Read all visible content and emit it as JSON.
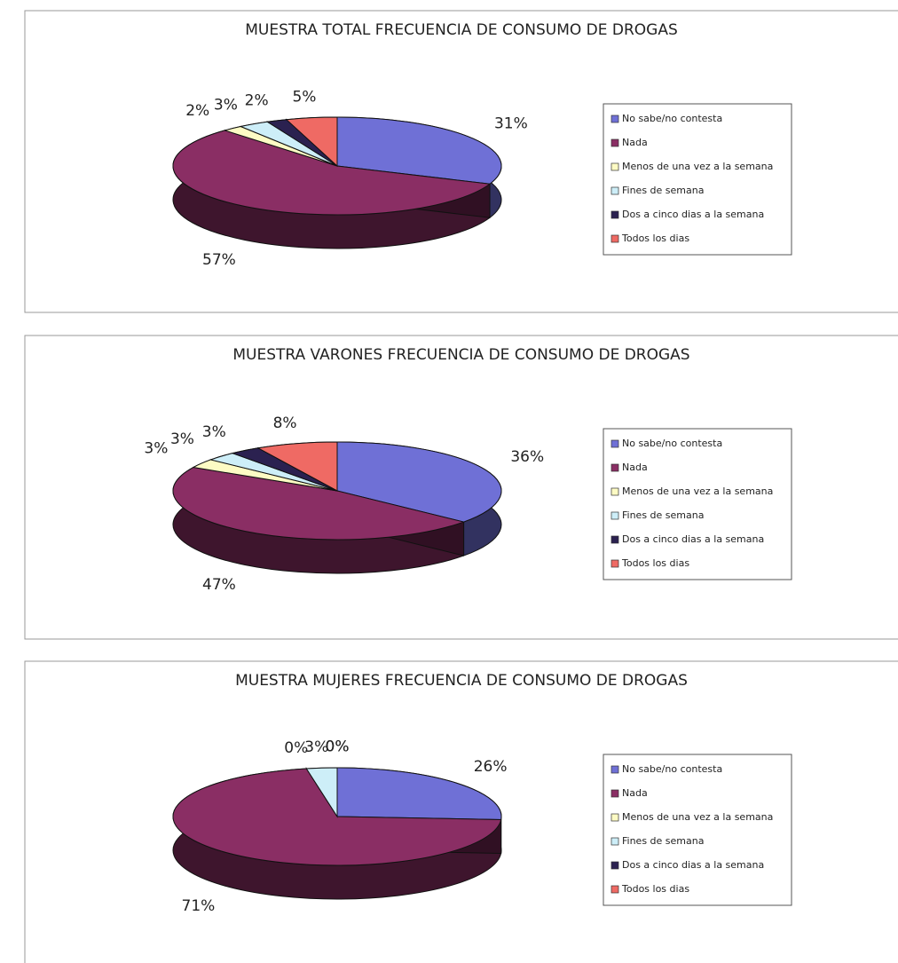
{
  "chart_data": [
    {
      "type": "pie",
      "title": "MUESTRA TOTAL FRECUENCIA DE CONSUMO DE DROGAS",
      "categories": [
        "No sabe/no contesta",
        "Nada",
        "Menos de una vez a la semana",
        "Fines de semana",
        "Dos a cinco dias a la semana",
        "Todos los dias"
      ],
      "colors": [
        "#6f70d6",
        "#8a2e64",
        "#fdfbc4",
        "#cdeef8",
        "#2b2150",
        "#ef6a64"
      ],
      "values": [
        31,
        57,
        2,
        3,
        2,
        5
      ],
      "value_labels": [
        "31%",
        "57%",
        "2%",
        "3%",
        "2%",
        "5%"
      ]
    },
    {
      "type": "pie",
      "title": "MUESTRA VARONES FRECUENCIA DE CONSUMO DE DROGAS",
      "categories": [
        "No sabe/no contesta",
        "Nada",
        "Menos de una vez a la semana",
        "Fines de semana",
        "Dos a cinco dias a la semana",
        "Todos los dias"
      ],
      "colors": [
        "#6f70d6",
        "#8a2e64",
        "#fdfbc4",
        "#cdeef8",
        "#2b2150",
        "#ef6a64"
      ],
      "values": [
        36,
        47,
        3,
        3,
        3,
        8
      ],
      "value_labels": [
        "36%",
        "47%",
        "3%",
        "3%",
        "3%",
        "8%"
      ]
    },
    {
      "type": "pie",
      "title": "MUESTRA MUJERES FRECUENCIA DE CONSUMO DE DROGAS",
      "categories": [
        "No sabe/no contesta",
        "Nada",
        "Menos de una vez a la semana",
        "Fines de semana",
        "Dos a cinco dias a la semana",
        "Todos los dias"
      ],
      "colors": [
        "#6f70d6",
        "#8a2e64",
        "#fdfbc4",
        "#cdeef8",
        "#2b2150",
        "#ef6a64"
      ],
      "values": [
        26,
        71,
        0,
        3,
        0,
        0
      ],
      "value_labels": [
        "26%",
        "71%",
        "0%",
        "3%",
        "0%",
        "0%"
      ]
    }
  ]
}
